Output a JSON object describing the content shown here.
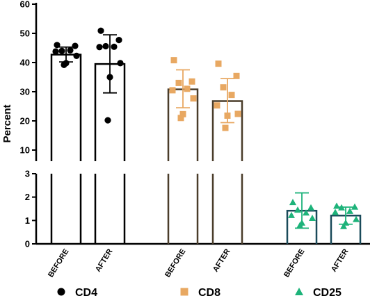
{
  "chart_data": {
    "type": "bar",
    "ylabel": "Percent",
    "y_axis_break": {
      "lower_range": [
        0,
        3
      ],
      "upper_range": [
        10,
        60
      ],
      "lower_ticks": [
        "0",
        "1",
        "2",
        "3"
      ],
      "upper_ticks": [
        "10",
        "20",
        "30",
        "40",
        "50",
        "60"
      ]
    },
    "categories": [
      "BEFORE",
      "AFTER",
      "BEFORE",
      "AFTER",
      "BEFORE",
      "AFTER"
    ],
    "series": [
      {
        "name": "CD4",
        "marker": "circle",
        "color": "#000000",
        "bar_edge": "#000000",
        "groups": [
          {
            "label": "BEFORE",
            "mean": 42.7,
            "sd_low": 40.2,
            "sd_high": 45.3,
            "points": [
              46.0,
              45.7,
              44.0,
              44.2,
              43.8,
              42.3,
              39.8,
              39.2
            ]
          },
          {
            "label": "AFTER",
            "mean": 39.5,
            "sd_low": 29.6,
            "sd_high": 49.5,
            "points": [
              50.9,
              47.7,
              45.6,
              45.4,
              45.3,
              39.8,
              35.0,
              20.2
            ]
          }
        ]
      },
      {
        "name": "CD8",
        "marker": "square",
        "color": "#e8a862",
        "bar_edge": "#4a3d2a",
        "groups": [
          {
            "label": "BEFORE",
            "mean": 30.8,
            "sd_low": 24.5,
            "sd_high": 37.5,
            "points": [
              40.8,
              33.5,
              33.0,
              31.0,
              30.5,
              27.7,
              22.3,
              21.0
            ]
          },
          {
            "label": "AFTER",
            "mean": 26.8,
            "sd_low": 19.4,
            "sd_high": 34.5,
            "points": [
              39.6,
              35.4,
              31.5,
              28.9,
              25.3,
              22.4,
              21.8,
              17.6
            ]
          }
        ]
      },
      {
        "name": "CD25",
        "marker": "triangle",
        "color": "#1db37a",
        "bar_edge": "#1a4a5a",
        "groups": [
          {
            "label": "BEFORE",
            "mean": 1.42,
            "sd_low": 0.67,
            "sd_high": 2.18,
            "points": [
              1.78,
              1.55,
              1.45,
              1.33,
              1.22,
              1.1,
              0.9,
              0.78
            ]
          },
          {
            "label": "AFTER",
            "mean": 1.21,
            "sd_low": 0.84,
            "sd_high": 1.57,
            "points": [
              1.62,
              1.58,
              1.55,
              1.4,
              1.35,
              1.05,
              0.9,
              0.75
            ]
          }
        ]
      }
    ],
    "legend_placement": "bottom"
  }
}
